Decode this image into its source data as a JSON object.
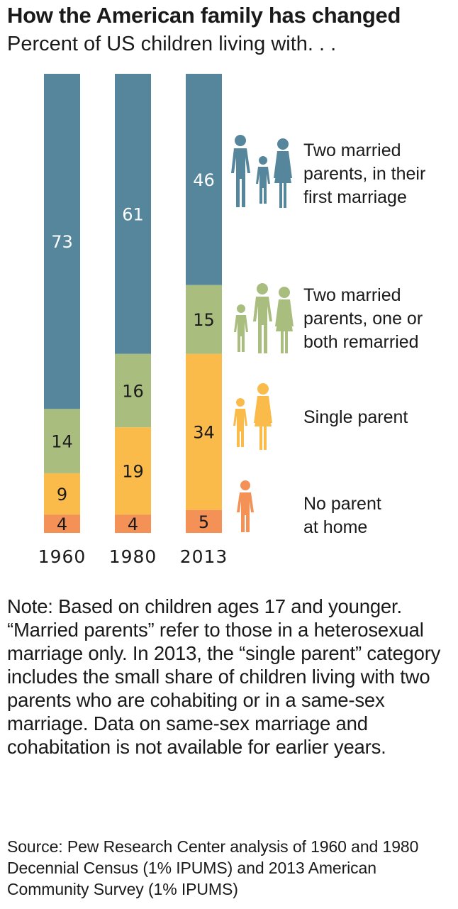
{
  "title": "How the American family has changed",
  "subtitle": "Percent of US children living with. . .",
  "colors": {
    "first_marriage": "#55869c",
    "remarried": "#a9bd7f",
    "single_parent": "#fbbb4b",
    "no_parent": "#f49157"
  },
  "chart_data": {
    "type": "bar",
    "stacked": true,
    "categories": [
      "1960",
      "1980",
      "2013"
    ],
    "ylim": [
      0,
      100
    ],
    "series": [
      {
        "key": "no_parent",
        "name": "No parent at home",
        "values": [
          4,
          4,
          5
        ],
        "color": "#f49157",
        "icon": "child-silhouette-icon"
      },
      {
        "key": "single_parent",
        "name": "Single parent",
        "values": [
          9,
          19,
          34
        ],
        "color": "#fbbb4b",
        "icon": "single-parent-family-icon"
      },
      {
        "key": "remarried",
        "name": "Two married parents, one or both remarried",
        "values": [
          14,
          16,
          15
        ],
        "color": "#a9bd7f",
        "icon": "remarried-family-icon"
      },
      {
        "key": "first_marriage",
        "name": "Two married parents, in their first marriage",
        "values": [
          73,
          61,
          46
        ],
        "color": "#55869c",
        "icon": "married-family-icon"
      }
    ],
    "legend_lines": {
      "first_marriage": [
        "Two married",
        "parents, in their",
        "first marriage"
      ],
      "remarried": [
        "Two married",
        "parents, one or",
        "both remarried"
      ],
      "single_parent": [
        "Single parent"
      ],
      "no_parent": [
        "No parent",
        "at home"
      ]
    }
  },
  "note": "Note: Based on children ages 17 and younger. “Married parents” refer to those in a heterosexual marriage only. In 2013, the “single parent” category includes the small share of children living with two parents who are cohabiting or in a same-sex marriage. Data on same-sex marriage and cohabitation is not available for earlier years.",
  "source": "Source: Pew Research Center analysis of 1960 and 1980 Decennial Census (1% IPUMS) and 2013 American Community Survey (1% IPUMS)"
}
